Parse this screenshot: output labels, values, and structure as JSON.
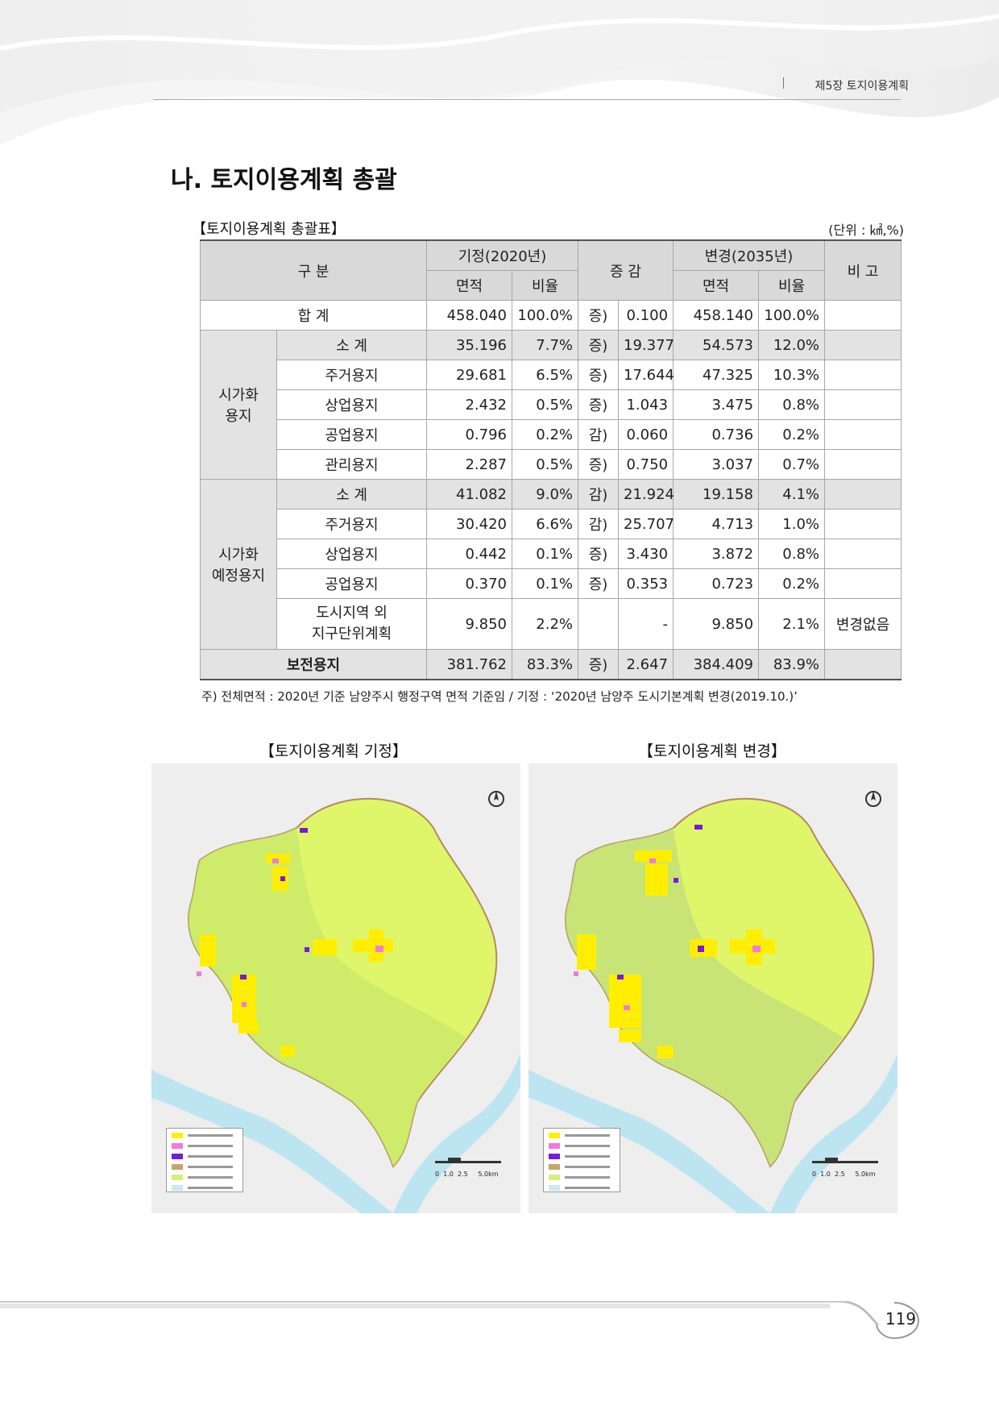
{
  "header": {
    "chapter": "제5장  토지이용계획"
  },
  "section_title": "나.  토지이용계획  총괄",
  "table": {
    "title": "【토지이용계획  총괄표】",
    "unit": "(단위 : ㎢,%)",
    "headers": {
      "category": "구    분",
      "existing": "기정(2020년)",
      "change": "증  감",
      "revised": "변경(2035년)",
      "remark": "비  고",
      "area": "면적",
      "ratio": "비율"
    },
    "total_label": "합        계",
    "total": {
      "area1": "458.040",
      "ratio1": "100.0%",
      "dir": "증)",
      "delta": "0.100",
      "area2": "458.140",
      "ratio2": "100.0%",
      "remark": ""
    },
    "groups": [
      {
        "name": "시가화\n용지",
        "rows": [
          {
            "label": "소      계",
            "area1": "35.196",
            "ratio1": "7.7%",
            "dir": "증)",
            "delta": "19.377",
            "area2": "54.573",
            "ratio2": "12.0%",
            "remark": ""
          },
          {
            "label": "주거용지",
            "area1": "29.681",
            "ratio1": "6.5%",
            "dir": "증)",
            "delta": "17.644",
            "area2": "47.325",
            "ratio2": "10.3%",
            "remark": ""
          },
          {
            "label": "상업용지",
            "area1": "2.432",
            "ratio1": "0.5%",
            "dir": "증)",
            "delta": "1.043",
            "area2": "3.475",
            "ratio2": "0.8%",
            "remark": ""
          },
          {
            "label": "공업용지",
            "area1": "0.796",
            "ratio1": "0.2%",
            "dir": "감)",
            "delta": "0.060",
            "area2": "0.736",
            "ratio2": "0.2%",
            "remark": ""
          },
          {
            "label": "관리용지",
            "area1": "2.287",
            "ratio1": "0.5%",
            "dir": "증)",
            "delta": "0.750",
            "area2": "3.037",
            "ratio2": "0.7%",
            "remark": ""
          }
        ]
      },
      {
        "name": "시가화\n예정용지",
        "rows": [
          {
            "label": "소      계",
            "area1": "41.082",
            "ratio1": "9.0%",
            "dir": "감)",
            "delta": "21.924",
            "area2": "19.158",
            "ratio2": "4.1%",
            "remark": ""
          },
          {
            "label": "주거용지",
            "area1": "30.420",
            "ratio1": "6.6%",
            "dir": "감)",
            "delta": "25.707",
            "area2": "4.713",
            "ratio2": "1.0%",
            "remark": ""
          },
          {
            "label": "상업용지",
            "area1": "0.442",
            "ratio1": "0.1%",
            "dir": "증)",
            "delta": "3.430",
            "area2": "3.872",
            "ratio2": "0.8%",
            "remark": ""
          },
          {
            "label": "공업용지",
            "area1": "0.370",
            "ratio1": "0.1%",
            "dir": "증)",
            "delta": "0.353",
            "area2": "0.723",
            "ratio2": "0.2%",
            "remark": ""
          },
          {
            "label": "도시지역 외\n지구단위계획",
            "area1": "9.850",
            "ratio1": "2.2%",
            "dir": "",
            "delta": "-",
            "area2": "9.850",
            "ratio2": "2.1%",
            "remark": "변경없음"
          }
        ]
      }
    ],
    "conservation": {
      "label": "보전용지",
      "area1": "381.762",
      "ratio1": "83.3%",
      "dir": "증)",
      "delta": "2.647",
      "area2": "384.409",
      "ratio2": "83.9%",
      "remark": ""
    },
    "note": "주) 전체면적 : 2020년 기준 남양주시 행정구역 면적 기준임 / 기정 : ‘2020년 남양주 도시기본계획 변경(2019.10.)’"
  },
  "maps": {
    "left_title": "【토지이용계획  기정】",
    "right_title": "【토지이용계획  변경】",
    "scale_labels": "0  1.0  2.5     5.0km",
    "legend_colors": [
      "#ffee00",
      "#f07ad8",
      "#7a1ad6",
      "#c9a46a",
      "#d6f07a",
      "#cfe6f3"
    ]
  },
  "footer": {
    "page_number": "119"
  }
}
